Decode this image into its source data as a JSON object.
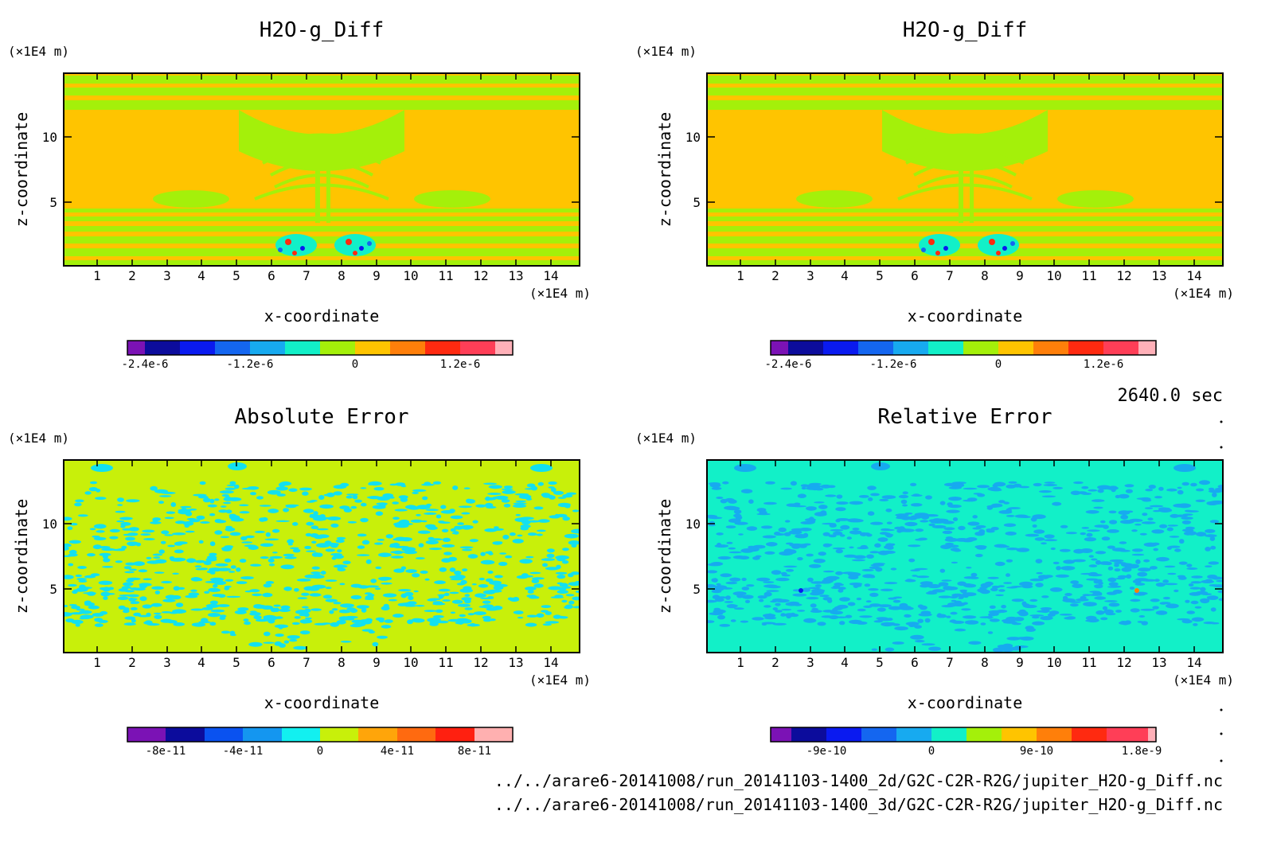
{
  "chart_data": [
    {
      "type": "heatmap",
      "title": "H2O-g_Diff",
      "xlabel": "x-coordinate",
      "ylabel": "z-coordinate",
      "x_unit": "(×1E4 m)",
      "y_unit": "(×1E4 m)",
      "xlim": [
        0.1,
        14.9
      ],
      "ylim": [
        0.1,
        14.9
      ],
      "xticks": [
        1,
        2,
        3,
        4,
        5,
        6,
        7,
        8,
        9,
        10,
        11,
        12,
        13,
        14
      ],
      "yticks": [
        5,
        10
      ],
      "colorbar": {
        "levels": [
          -2.6e-06,
          -2.4e-06,
          -2e-06,
          -1.6e-06,
          -1.2e-06,
          -8e-07,
          -4e-07,
          0,
          4e-07,
          8e-07,
          1.2e-06,
          1.6e-06
        ],
        "colors": [
          "#7b12b5",
          "#0c0c9c",
          "#0a1af0",
          "#1466f0",
          "#17aaf0",
          "#12f0c8",
          "#a4f00a",
          "#ffc400",
          "#ff7f0a",
          "#ff2a10",
          "#ff3e57",
          "#ffb0b8"
        ],
        "tick_labels": [
          "-2.4e-6",
          "-1.2e-6",
          "0",
          "1.2e-6"
        ]
      }
    },
    {
      "type": "heatmap",
      "title": "H2O-g_Diff",
      "xlabel": "x-coordinate",
      "ylabel": "z-coordinate",
      "x_unit": "(×1E4 m)",
      "y_unit": "(×1E4 m)",
      "xlim": [
        0.1,
        14.9
      ],
      "ylim": [
        0.1,
        14.9
      ],
      "xticks": [
        1,
        2,
        3,
        4,
        5,
        6,
        7,
        8,
        9,
        10,
        11,
        12,
        13,
        14
      ],
      "yticks": [
        5,
        10
      ],
      "colorbar": {
        "levels": [
          -2.6e-06,
          -2.4e-06,
          -2e-06,
          -1.6e-06,
          -1.2e-06,
          -8e-07,
          -4e-07,
          0,
          4e-07,
          8e-07,
          1.2e-06,
          1.6e-06
        ],
        "colors": [
          "#7b12b5",
          "#0c0c9c",
          "#0a1af0",
          "#1466f0",
          "#17aaf0",
          "#12f0c8",
          "#a4f00a",
          "#ffc400",
          "#ff7f0a",
          "#ff2a10",
          "#ff3e57",
          "#ffb0b8"
        ],
        "tick_labels": [
          "-2.4e-6",
          "-1.2e-6",
          "0",
          "1.2e-6"
        ]
      }
    },
    {
      "type": "heatmap",
      "title": "Absolute Error",
      "xlabel": "x-coordinate",
      "ylabel": "z-coordinate",
      "x_unit": "(×1E4 m)",
      "y_unit": "(×1E4 m)",
      "xlim": [
        0.1,
        14.9
      ],
      "ylim": [
        0.1,
        14.9
      ],
      "xticks": [
        1,
        2,
        3,
        4,
        5,
        6,
        7,
        8,
        9,
        10,
        11,
        12,
        13,
        14
      ],
      "yticks": [
        5,
        10
      ],
      "colorbar": {
        "levels": [
          -1e-10,
          -8e-11,
          -6e-11,
          -4e-11,
          -2e-11,
          0,
          2e-11,
          4e-11,
          6e-11,
          8e-11,
          1e-10
        ],
        "colors": [
          "#7b12b5",
          "#0c0c9c",
          "#0a52f0",
          "#1496f0",
          "#12f0f0",
          "#c8f00a",
          "#ffa50a",
          "#ff6a10",
          "#ff2010",
          "#ffb0b0"
        ],
        "tick_labels": [
          "-8e-11",
          "-4e-11",
          "0",
          "4e-11",
          "8e-11"
        ]
      }
    },
    {
      "type": "heatmap",
      "title": "Relative Error",
      "xlabel": "x-coordinate",
      "ylabel": "z-coordinate",
      "x_unit": "(×1E4 m)",
      "y_unit": "(×1E4 m)",
      "xlim": [
        0.1,
        14.9
      ],
      "ylim": [
        0.1,
        14.9
      ],
      "xticks": [
        1,
        2,
        3,
        4,
        5,
        6,
        7,
        8,
        9,
        10,
        11,
        12,
        13,
        14
      ],
      "yticks": [
        5,
        10
      ],
      "colorbar": {
        "levels": [
          -1.5e-09,
          -1.2e-09,
          -9e-10,
          -6e-10,
          -3e-10,
          0,
          3e-10,
          6e-10,
          9e-10,
          1.2e-09,
          1.5e-09,
          1.8e-09
        ],
        "colors": [
          "#7b12b5",
          "#0c0c9c",
          "#0a1af0",
          "#1466f0",
          "#17aaf0",
          "#12f0c8",
          "#a4f00a",
          "#ffc400",
          "#ff7f0a",
          "#ff2a10",
          "#ff3e57",
          "#ffb0b8"
        ],
        "tick_labels": [
          "-9e-10",
          "0",
          "9e-10",
          "1.8e-9"
        ]
      }
    }
  ],
  "time_label": "2640.0 sec",
  "files": [
    "../../arare6-20141008/run_20141103-1400_2d/G2C-C2R-R2G/jupiter_H2O-g_Diff.nc",
    "../../arare6-20141008/run_20141103-1400_3d/G2C-C2R-R2G/jupiter_H2O-g_Diff.nc"
  ]
}
